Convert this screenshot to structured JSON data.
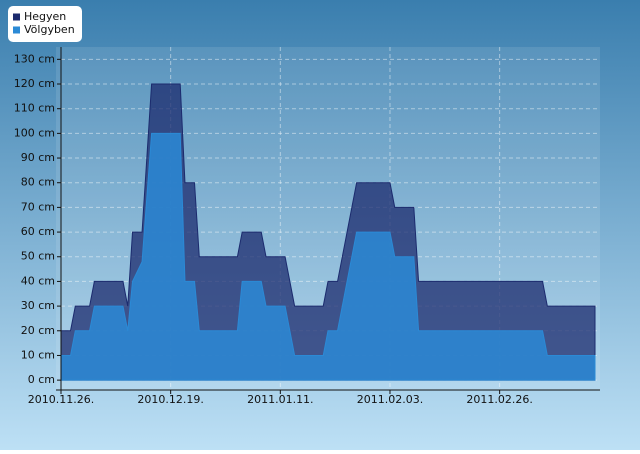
{
  "chart_data": {
    "type": "area",
    "x": [
      "2010.11.26.",
      "2010.11.28.",
      "2010.11.29.",
      "2010.12.02.",
      "2010.12.03.",
      "2010.12.09.",
      "2010.12.10.",
      "2010.12.11.",
      "2010.12.13.",
      "2010.12.15.",
      "2010.12.21.",
      "2010.12.22.",
      "2010.12.24.",
      "2010.12.25.",
      "2011.01.02.",
      "2011.01.03.",
      "2011.01.07.",
      "2011.01.08.",
      "2011.01.12.",
      "2011.01.14.",
      "2011.01.20.",
      "2011.01.21.",
      "2011.01.23.",
      "2011.01.27.",
      "2011.02.03.",
      "2011.02.04.",
      "2011.02.08.",
      "2011.02.09.",
      "2011.03.07.",
      "2011.03.08.",
      "2011.03.18."
    ],
    "series": [
      {
        "name": "Hegyen",
        "color": "#1c2b6e",
        "values": [
          20,
          20,
          30,
          30,
          40,
          40,
          30,
          60,
          60,
          120,
          120,
          80,
          80,
          50,
          50,
          60,
          60,
          50,
          50,
          30,
          30,
          40,
          40,
          80,
          80,
          70,
          70,
          40,
          40,
          30,
          30
        ]
      },
      {
        "name": "Völgyben",
        "color": "#2b8ad6",
        "values": [
          10,
          10,
          20,
          20,
          30,
          30,
          20,
          40,
          48,
          100,
          100,
          40,
          40,
          20,
          20,
          40,
          40,
          30,
          30,
          10,
          10,
          20,
          20,
          60,
          60,
          50,
          50,
          20,
          20,
          10,
          10
        ]
      }
    ],
    "xlim": [
      "2010.11.26.",
      "2011.03.18."
    ],
    "xticks": [
      "2010.11.26.",
      "2010.12.19.",
      "2011.01.11.",
      "2011.02.03.",
      "2011.02.26."
    ],
    "ylim": [
      -4,
      135
    ],
    "yticks": [
      {
        "value": 0,
        "label": "0 cm"
      },
      {
        "value": 10,
        "label": "10 cm"
      },
      {
        "value": 20,
        "label": "20 cm"
      },
      {
        "value": 30,
        "label": "30 cm"
      },
      {
        "value": 40,
        "label": "40 cm"
      },
      {
        "value": 50,
        "label": "50 cm"
      },
      {
        "value": 60,
        "label": "60 cm"
      },
      {
        "value": 70,
        "label": "70 cm"
      },
      {
        "value": 80,
        "label": "80 cm"
      },
      {
        "value": 90,
        "label": "90 cm"
      },
      {
        "value": 100,
        "label": "100 cm"
      },
      {
        "value": 110,
        "label": "110 cm"
      },
      {
        "value": 120,
        "label": "120 cm"
      },
      {
        "value": 130,
        "label": "130 cm"
      }
    ],
    "grid": true,
    "legend": "top-left"
  }
}
